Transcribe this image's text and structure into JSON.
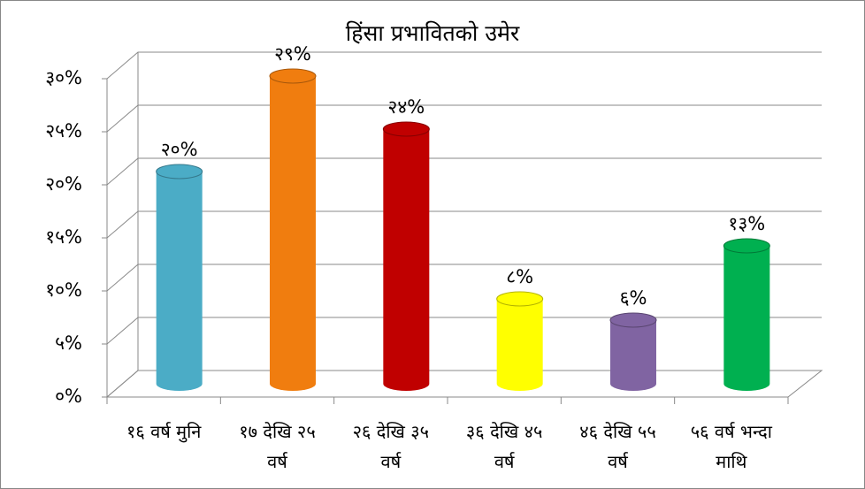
{
  "chart_data": {
    "type": "bar3d",
    "title": "हिंसा प्रभावितको उमेर",
    "categories": [
      "१६ वर्ष मुनि",
      "१७ देखि २५ वर्ष",
      "२६ देखि ३५ वर्ष",
      "३६ देखि ४५ वर्ष",
      "४६ देखि ५५ वर्ष",
      "५६ वर्ष भन्दा माथि"
    ],
    "values": [
      20,
      29,
      24,
      8,
      6,
      13
    ],
    "value_labels": [
      "२०%",
      "२९%",
      "२४%",
      "८%",
      "६%",
      "१३%"
    ],
    "colors": [
      "#4bacc6",
      "#f07d0f",
      "#c00000",
      "#ffff00",
      "#8064a2",
      "#00b050"
    ],
    "ylim": [
      0,
      30
    ],
    "yticks": [
      {
        "value": 0,
        "label": "०%"
      },
      {
        "value": 5,
        "label": "५%"
      },
      {
        "value": 10,
        "label": "१०%"
      },
      {
        "value": 15,
        "label": "१५%"
      },
      {
        "value": 20,
        "label": "२०%"
      },
      {
        "value": 25,
        "label": "२५%"
      },
      {
        "value": 30,
        "label": "३०%"
      }
    ],
    "grid": true
  }
}
